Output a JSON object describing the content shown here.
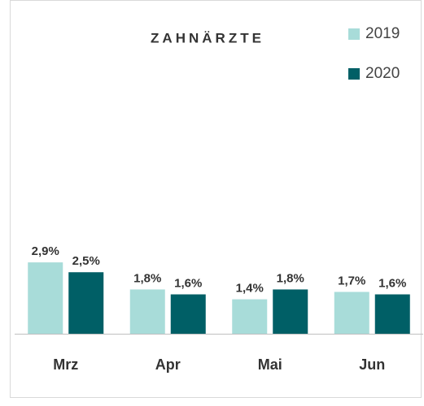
{
  "chart_data": {
    "type": "bar",
    "title": "ZAHNÄRZTE",
    "categories": [
      "Mrz",
      "Apr",
      "Mai",
      "Jun"
    ],
    "series": [
      {
        "name": "2019",
        "color": "#a8dcd9",
        "values": [
          2.9,
          1.8,
          1.4,
          1.7
        ],
        "value_labels": [
          "2,9%",
          "1,8%",
          "1,4%",
          "1,7%"
        ]
      },
      {
        "name": "2020",
        "color": "#005f66",
        "values": [
          2.5,
          1.6,
          1.8,
          1.6
        ],
        "value_labels": [
          "2,5%",
          "1,6%",
          "1,8%",
          "1,6%"
        ]
      }
    ],
    "legend": "top-right"
  }
}
